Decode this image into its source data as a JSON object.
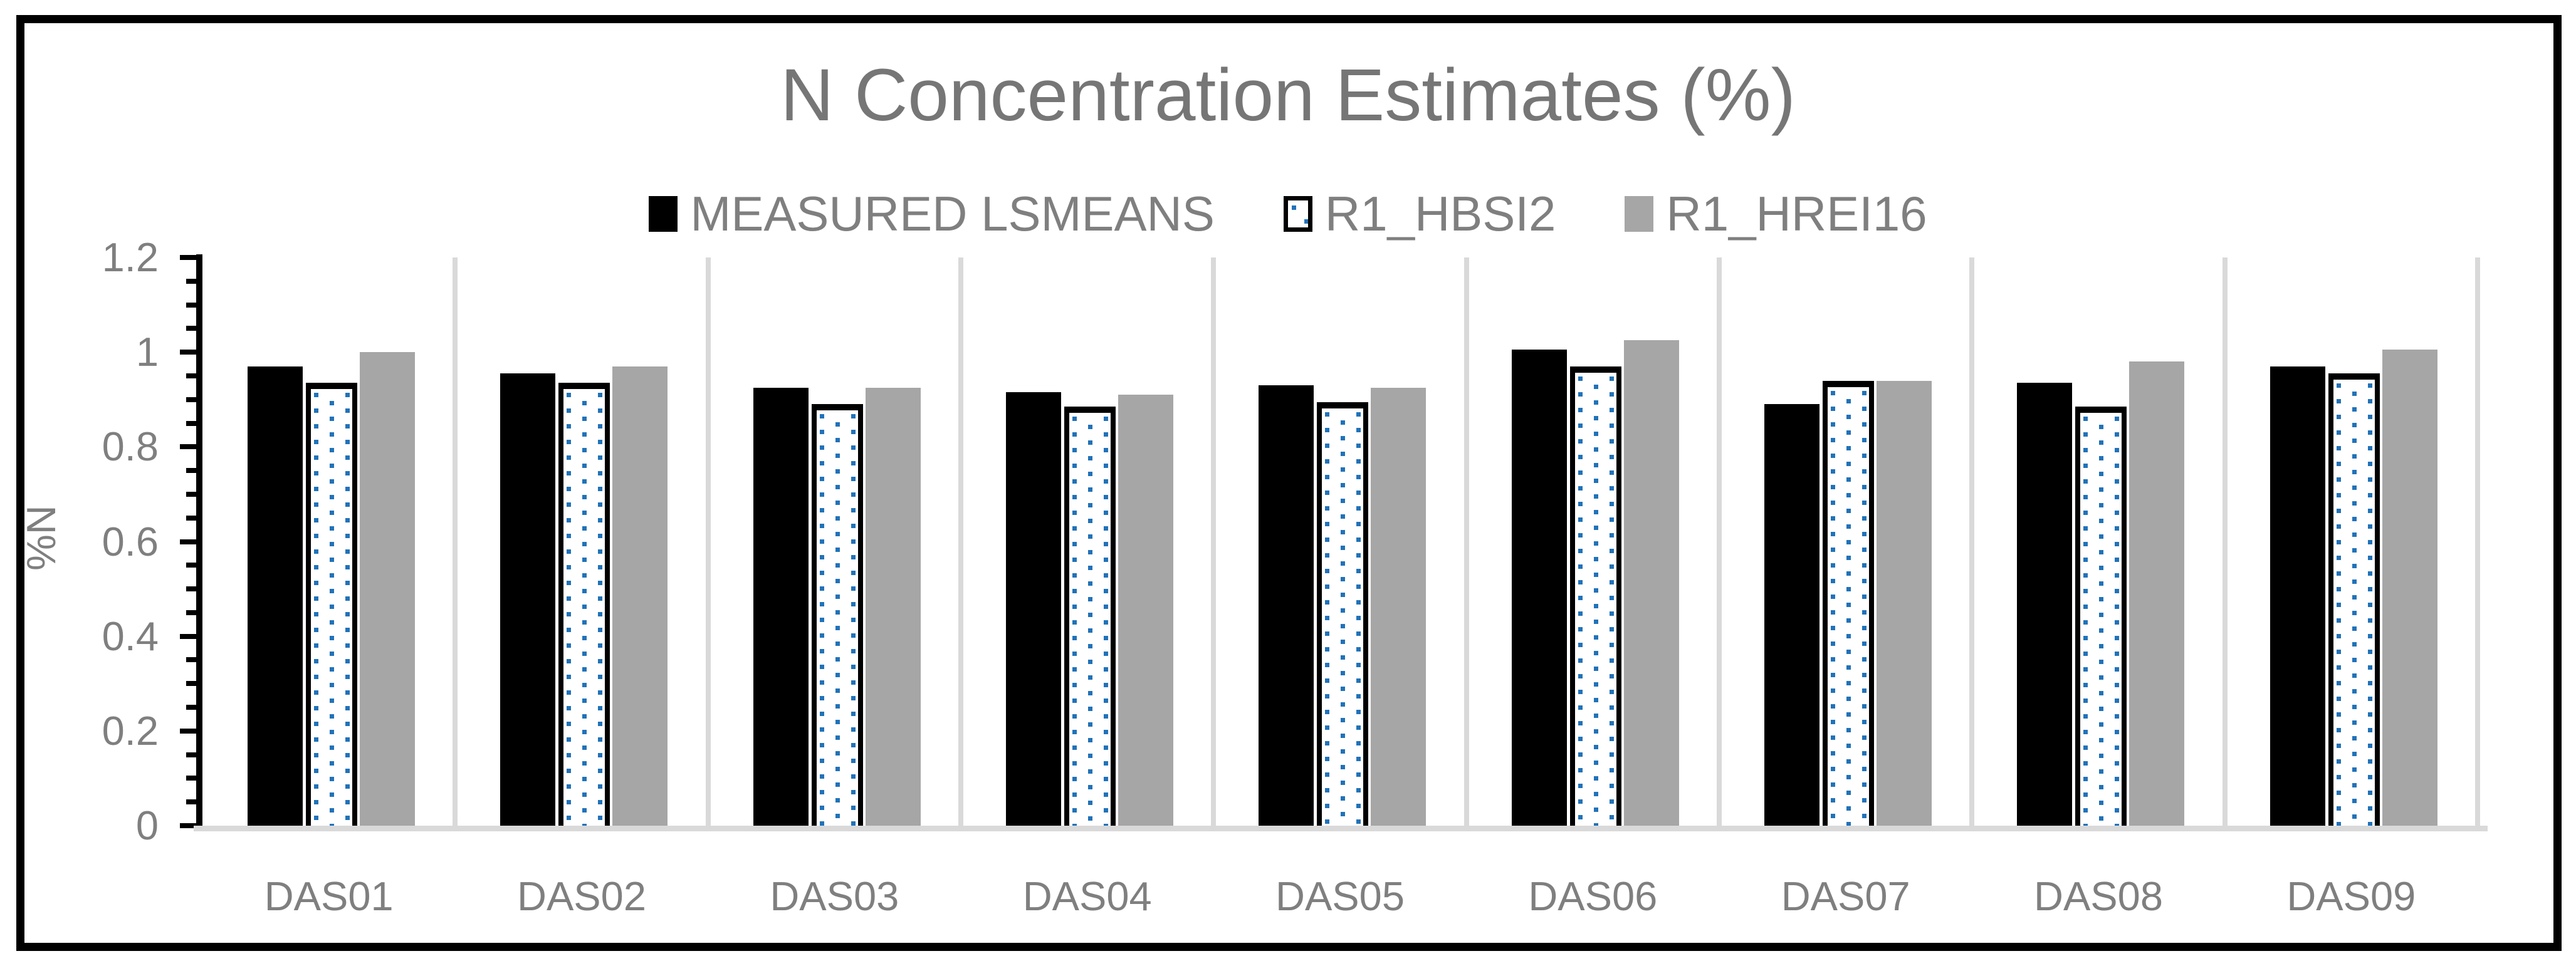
{
  "title": {
    "text": "N Concentration Estimates (%)",
    "color": "#767676"
  },
  "legend": {
    "items": [
      {
        "label": "MEASURED LSMEANS",
        "swatch": "black-solid-swatch"
      },
      {
        "label": "R1_HBSI2",
        "swatch": "blue-dotted-swatch"
      },
      {
        "label": "R1_HREI16",
        "swatch": "gray-solid-swatch"
      }
    ]
  },
  "y_axis": {
    "label": "%N",
    "tick_labels": [
      "0",
      "0.2",
      "0.4",
      "0.6",
      "0.8",
      "1",
      "1.2"
    ],
    "min": 0,
    "max": 1.2,
    "major_step": 0.2,
    "minor_step": 0.05
  },
  "chart_data": {
    "type": "bar",
    "title": "N Concentration Estimates (%)",
    "ylabel": "%N",
    "ylim": [
      0,
      1.2
    ],
    "grid": "vertical-category-separators-only",
    "legend_position": "top-center",
    "categories": [
      "DAS01",
      "DAS02",
      "DAS03",
      "DAS04",
      "DAS05",
      "DAS06",
      "DAS07",
      "DAS08",
      "DAS09"
    ],
    "series": [
      {
        "name": "MEASURED LSMEANS",
        "style": "solid",
        "color": "#000000",
        "values": [
          0.97,
          0.955,
          0.925,
          0.915,
          0.93,
          1.005,
          0.89,
          0.935,
          0.97
        ]
      },
      {
        "name": "R1_HBSI2",
        "style": "dotted-pattern",
        "color": "#2172B8",
        "fill": "#FFFFFF",
        "outline": "#000000",
        "values": [
          0.935,
          0.935,
          0.89,
          0.885,
          0.895,
          0.97,
          0.94,
          0.885,
          0.955
        ]
      },
      {
        "name": "R1_HREI16",
        "style": "solid",
        "color": "#A6A6A6",
        "values": [
          1.0,
          0.97,
          0.925,
          0.91,
          0.925,
          1.025,
          0.94,
          0.98,
          1.005
        ]
      }
    ]
  },
  "colors": {
    "text_gray": "#7F7F7F",
    "title_gray": "#767676",
    "bar_black": "#000000",
    "bar_gray": "#A6A6A6",
    "dot_blue": "#2172B8",
    "gridline": "#D9D9D9",
    "axis": "#000000",
    "frame": "#000000"
  }
}
